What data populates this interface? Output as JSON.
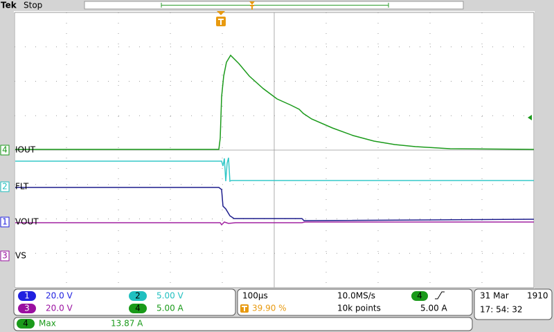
{
  "header": {
    "brand": "Tek",
    "status": "Stop"
  },
  "channels": [
    {
      "number": "4",
      "label": "IOUT"
    },
    {
      "number": "2",
      "label": "FLT"
    },
    {
      "number": "1",
      "label": "VOUT"
    },
    {
      "number": "3",
      "label": "VS"
    }
  ],
  "scales": [
    {
      "number": "1",
      "value": "20.0 V"
    },
    {
      "number": "2",
      "value": "5.00 V"
    },
    {
      "number": "3",
      "value": "20.0 V"
    },
    {
      "number": "4",
      "value": "5.00 A"
    }
  ],
  "timebase": {
    "time_per_div": "100µs",
    "sample_rate": "10.0MS/s",
    "trigger_position": "39.90 %",
    "record_length": "10k points"
  },
  "trigger": {
    "source": "4",
    "level": "5.00 A"
  },
  "datetime": {
    "date": "31 Mar",
    "year": "1910",
    "time": "17: 54: 32"
  },
  "measurement": {
    "source": "4",
    "type": "Max",
    "value": "13.87 A"
  }
}
